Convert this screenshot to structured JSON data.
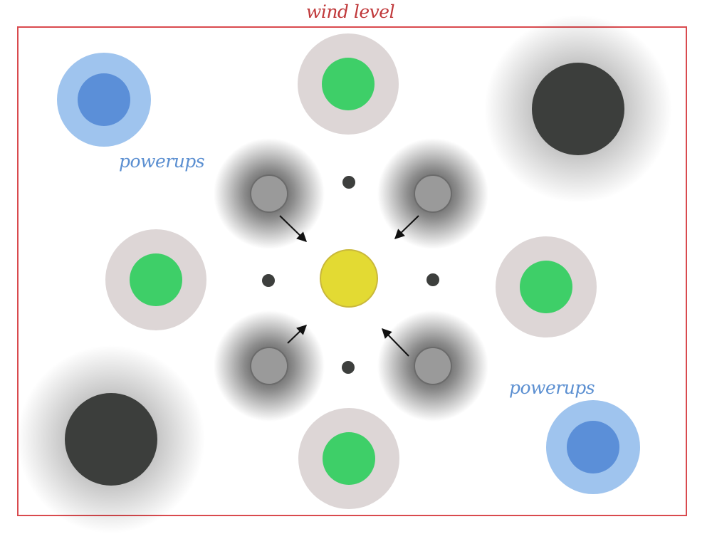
{
  "level": {
    "title": "wind level"
  },
  "labels": {
    "powerups_top_left": "powerups",
    "powerups_bottom_right": "powerups"
  },
  "colors": {
    "frame": "#d94a4e",
    "title": "#c0383a",
    "powerup_label": "#5b8fd1",
    "green_core": "#3ecf68",
    "green_ring": "#ddd6d6",
    "blue_core": "#5b8fd8",
    "blue_ring": "#9fc4ee",
    "black_hole": "#3c3e3c",
    "wind_fan": "#9a9a9a",
    "yellow_center": "#e3da33",
    "dot": "#3d3f3d"
  },
  "entities": {
    "green_targets": 4,
    "powerups": 2,
    "black_holes": 2,
    "wind_fans": 4,
    "small_dots": 4,
    "player": "yellow-center-ball"
  }
}
